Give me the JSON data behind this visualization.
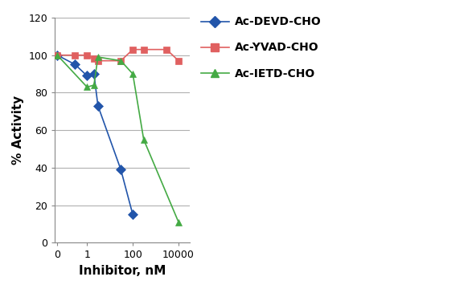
{
  "title": "",
  "xlabel": "Inhibitor, nM",
  "ylabel": "% Activity",
  "ylim": [
    0,
    120
  ],
  "yticks": [
    0,
    20,
    40,
    60,
    80,
    100,
    120
  ],
  "series": [
    {
      "label": "Ac-DEVD-CHO",
      "color": "#2255aa",
      "marker": "D",
      "markersize": 6,
      "x": [
        0.05,
        0.3,
        1.0,
        2.0,
        3.0,
        30,
        100
      ],
      "y": [
        100,
        95,
        89,
        90,
        73,
        39,
        15
      ]
    },
    {
      "label": "Ac-YVAD-CHO",
      "color": "#e06060",
      "marker": "s",
      "markersize": 6,
      "x": [
        0.05,
        0.3,
        1.0,
        2.0,
        3.0,
        30,
        100,
        300,
        3000,
        10000
      ],
      "y": [
        100,
        100,
        100,
        98,
        97,
        97,
        103,
        103,
        103,
        97
      ]
    },
    {
      "label": "Ac-IETD-CHO",
      "color": "#44aa44",
      "marker": "^",
      "markersize": 6,
      "x": [
        0.05,
        1.0,
        2.0,
        3.0,
        30,
        100,
        300,
        10000
      ],
      "y": [
        100,
        83,
        84,
        99,
        97,
        90,
        55,
        11
      ]
    }
  ],
  "legend_labels": [
    "Ac-DEVD-CHO",
    "Ac-YVAD-CHO",
    "Ac-IETD-CHO"
  ],
  "legend_colors": [
    "#2255aa",
    "#e06060",
    "#44aa44"
  ],
  "legend_markers": [
    "D",
    "s",
    "^"
  ],
  "background_color": "#ffffff",
  "grid_color": "#b0b0b0",
  "font_family": "Arial"
}
